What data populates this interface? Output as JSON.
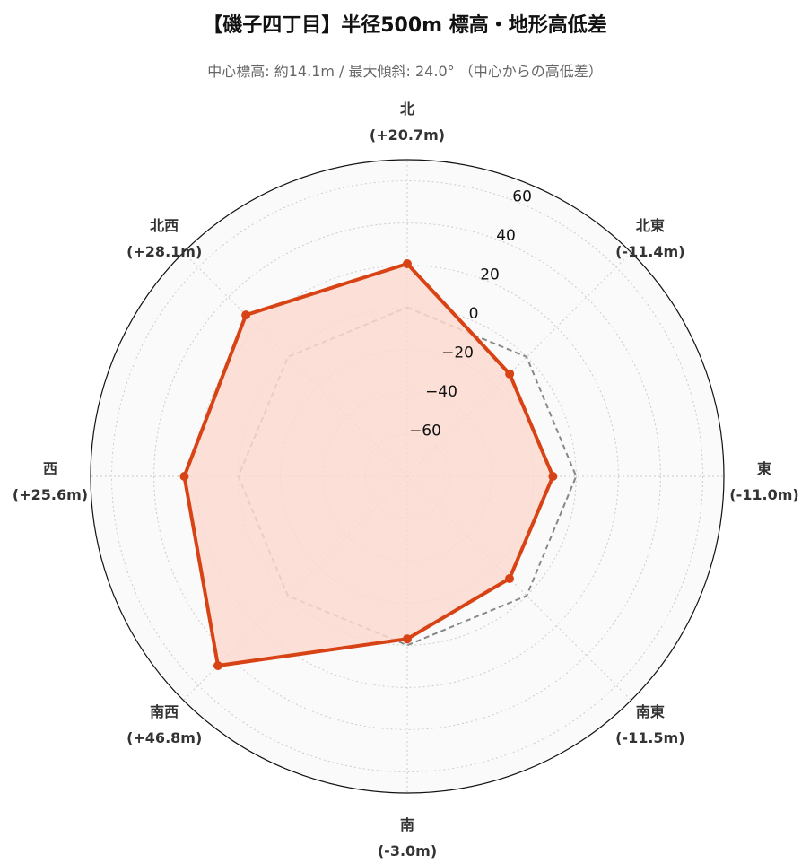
{
  "title": "【磯子四丁目】半径500m 標高・地形高低差",
  "subtitle": "中心標高: 約14.1m / 最大傾斜: 24.0° （中心からの高低差）",
  "chart_data": {
    "type": "radar",
    "directions": [
      "北",
      "北東",
      "東",
      "南東",
      "南",
      "南西",
      "西",
      "北西"
    ],
    "direction_labels": [
      "(+20.7m)",
      "(-11.4m)",
      "(-11.0m)",
      "(-11.5m)",
      "(-3.0m)",
      "(+46.8m)",
      "(+25.6m)",
      "(+28.1m)"
    ],
    "values": [
      20.7,
      -11.4,
      -11.0,
      -11.5,
      -3.0,
      46.8,
      25.6,
      28.1
    ],
    "reference": 0,
    "rlim": [
      -80,
      70
    ],
    "rticks": [
      -60,
      -40,
      -20,
      0,
      20,
      40,
      60
    ],
    "rtick_labels": [
      "−60",
      "−40",
      "−20",
      "0",
      "20",
      "40",
      "60"
    ],
    "grid": true,
    "colors": {
      "series": "#d84315",
      "fill": "#fbd9d0",
      "reference": "#888888",
      "grid": "#cccccc",
      "background": "#fafafa"
    }
  }
}
